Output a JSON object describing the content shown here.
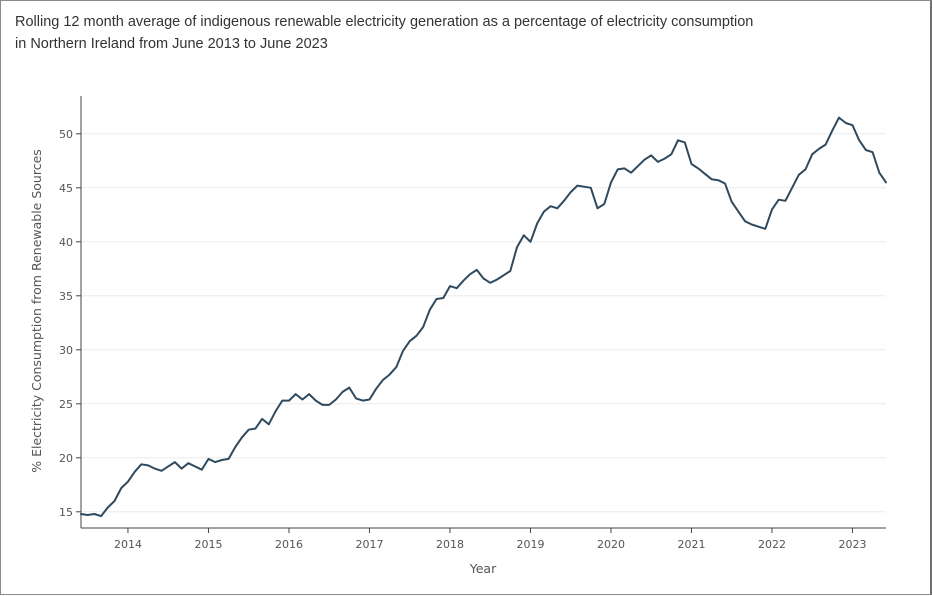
{
  "chart_data": {
    "type": "line",
    "title_lines": [
      "Rolling 12 month average of indigenous renewable electricity generation as a percentage of electricity consumption",
      "in Northern Ireland from June 2013 to June 2023"
    ],
    "xlabel": "Year",
    "ylabel": "% Electricity Consumption from Renewable Sources",
    "x_ticks": [
      "2014",
      "2015",
      "2016",
      "2017",
      "2018",
      "2019",
      "2020",
      "2021",
      "2022",
      "2023"
    ],
    "y_ticks": [
      "15",
      "20",
      "25",
      "30",
      "35",
      "40",
      "45",
      "50"
    ],
    "xlim": [
      "2013-06",
      "2023-06"
    ],
    "ylim": [
      13.5,
      53.5
    ],
    "grid": "horizontal",
    "line_color": "#2f4a5e",
    "series": [
      {
        "x": [
          "2013-06",
          "2013-07",
          "2013-08",
          "2013-09",
          "2013-10",
          "2013-11",
          "2013-12",
          "2014-01",
          "2014-02",
          "2014-03",
          "2014-04",
          "2014-05",
          "2014-06",
          "2014-07",
          "2014-08",
          "2014-09",
          "2014-10",
          "2014-11",
          "2014-12",
          "2015-01",
          "2015-02",
          "2015-03",
          "2015-04",
          "2015-05",
          "2015-06",
          "2015-07",
          "2015-08",
          "2015-09",
          "2015-10",
          "2015-11",
          "2015-12",
          "2016-01",
          "2016-02",
          "2016-03",
          "2016-04",
          "2016-05",
          "2016-06",
          "2016-07",
          "2016-08",
          "2016-09",
          "2016-10",
          "2016-11",
          "2016-12",
          "2017-01",
          "2017-02",
          "2017-03",
          "2017-04",
          "2017-05",
          "2017-06",
          "2017-07",
          "2017-08",
          "2017-09",
          "2017-10",
          "2017-11",
          "2017-12",
          "2018-01",
          "2018-02",
          "2018-03",
          "2018-04",
          "2018-05",
          "2018-06",
          "2018-07",
          "2018-08",
          "2018-09",
          "2018-10",
          "2018-11",
          "2018-12",
          "2019-01",
          "2019-02",
          "2019-03",
          "2019-04",
          "2019-05",
          "2019-06",
          "2019-07",
          "2019-08",
          "2019-09",
          "2019-10",
          "2019-11",
          "2019-12",
          "2020-01",
          "2020-02",
          "2020-03",
          "2020-04",
          "2020-05",
          "2020-06",
          "2020-07",
          "2020-08",
          "2020-09",
          "2020-10",
          "2020-11",
          "2020-12",
          "2021-01",
          "2021-02",
          "2021-03",
          "2021-04",
          "2021-05",
          "2021-06",
          "2021-07",
          "2021-08",
          "2021-09",
          "2021-10",
          "2021-11",
          "2021-12",
          "2022-01",
          "2022-02",
          "2022-03",
          "2022-04",
          "2022-05",
          "2022-06",
          "2022-07",
          "2022-08",
          "2022-09",
          "2022-10",
          "2022-11",
          "2022-12",
          "2023-01",
          "2023-02",
          "2023-03",
          "2023-04",
          "2023-05",
          "2023-06"
        ],
        "y": [
          14.8,
          14.7,
          14.8,
          14.6,
          15.4,
          16.0,
          17.2,
          17.8,
          18.7,
          19.4,
          19.3,
          19.0,
          18.8,
          19.2,
          19.6,
          19.0,
          19.5,
          19.2,
          18.9,
          19.9,
          19.6,
          19.8,
          19.9,
          21.0,
          21.9,
          22.6,
          22.7,
          23.6,
          23.1,
          24.3,
          25.3,
          25.3,
          25.9,
          25.4,
          25.9,
          25.3,
          24.9,
          24.9,
          25.4,
          26.1,
          26.5,
          25.5,
          25.3,
          25.4,
          26.4,
          27.2,
          27.7,
          28.4,
          29.9,
          30.8,
          31.3,
          32.1,
          33.7,
          34.7,
          34.8,
          35.9,
          35.7,
          36.4,
          37.0,
          37.4,
          36.6,
          36.2,
          36.5,
          36.9,
          37.3,
          39.5,
          40.6,
          40.0,
          41.7,
          42.8,
          43.3,
          43.1,
          43.8,
          44.6,
          45.2,
          45.1,
          45.0,
          43.1,
          43.5,
          45.5,
          46.7,
          46.8,
          46.4,
          47.0,
          47.6,
          48.0,
          47.4,
          47.7,
          48.1,
          49.4,
          49.2,
          47.2,
          46.8,
          46.3,
          45.8,
          45.7,
          45.4,
          43.7,
          42.8,
          41.9,
          41.6,
          41.4,
          41.2,
          43.0,
          43.9,
          43.8,
          45.0,
          46.2,
          46.7,
          48.1,
          48.6,
          49.0,
          50.3,
          51.5,
          51.0,
          50.8,
          49.4,
          48.5,
          48.3,
          46.4,
          45.5
        ]
      }
    ]
  }
}
